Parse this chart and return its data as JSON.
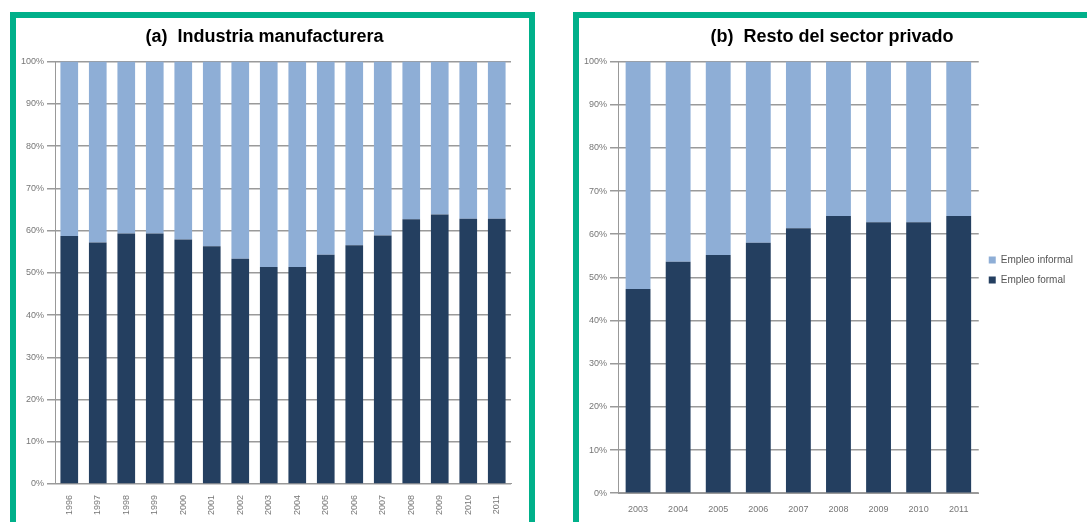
{
  "chart_data": [
    {
      "type": "bar",
      "title": "(a)  Industria manufacturera",
      "categories": [
        "1996",
        "1997",
        "1998",
        "1999",
        "2000",
        "2001",
        "2002",
        "2003",
        "2004",
        "2005",
        "2006",
        "2007",
        "2008",
        "2009",
        "2010",
        "2011"
      ],
      "stacked": true,
      "series": [
        {
          "color": "#243f60",
          "values": [
            58.7,
            57.2,
            59.3,
            59.3,
            57.9,
            56.3,
            53.3,
            51.4,
            51.4,
            54.3,
            56.5,
            58.8,
            62.7,
            63.8,
            62.8,
            62.8
          ]
        },
        {
          "color": "#8eaed6",
          "values": [
            41.3,
            42.8,
            40.7,
            40.7,
            42.1,
            43.7,
            46.7,
            48.6,
            48.6,
            45.7,
            43.5,
            41.2,
            37.3,
            36.2,
            37.2,
            37.2
          ]
        }
      ],
      "ylim": [
        0,
        100
      ],
      "yticks": [
        {
          "value": 0,
          "label": "0%"
        },
        {
          "value": 10,
          "label": "10%"
        },
        {
          "value": 20,
          "label": "20%"
        },
        {
          "value": 30,
          "label": "30%"
        },
        {
          "value": 40,
          "label": "40%"
        },
        {
          "value": 50,
          "label": "50%"
        },
        {
          "value": 60,
          "label": "60%"
        },
        {
          "value": 70,
          "label": "70%"
        },
        {
          "value": 80,
          "label": "80%"
        },
        {
          "value": 90,
          "label": "90%"
        },
        {
          "value": 100,
          "label": "100%"
        }
      ],
      "grid": "y",
      "legend": false
    },
    {
      "type": "bar",
      "title": "(b)  Resto del sector privado",
      "categories": [
        "2003",
        "2004",
        "2005",
        "2006",
        "2007",
        "2008",
        "2009",
        "2010",
        "2011"
      ],
      "stacked": true,
      "series": [
        {
          "name": "Empleo formal",
          "color": "#243f60",
          "values": [
            47.3,
            53.6,
            55.2,
            58.0,
            61.4,
            64.2,
            62.8,
            62.8,
            64.2
          ]
        },
        {
          "name": "Empleo informal",
          "color": "#8eaed6",
          "values": [
            52.7,
            46.4,
            44.8,
            42.0,
            38.6,
            35.8,
            37.2,
            37.2,
            35.8
          ]
        }
      ],
      "ylim": [
        0,
        100
      ],
      "yticks": [
        {
          "value": 0,
          "label": "0%"
        },
        {
          "value": 10,
          "label": "10%"
        },
        {
          "value": 20,
          "label": "20%"
        },
        {
          "value": 30,
          "label": "30%"
        },
        {
          "value": 40,
          "label": "40%"
        },
        {
          "value": 50,
          "label": "50%"
        },
        {
          "value": 60,
          "label": "60%"
        },
        {
          "value": 70,
          "label": "70%"
        },
        {
          "value": 80,
          "label": "80%"
        },
        {
          "value": 90,
          "label": "90%"
        },
        {
          "value": 100,
          "label": "100%"
        }
      ],
      "grid": "y",
      "legend": "right"
    }
  ]
}
